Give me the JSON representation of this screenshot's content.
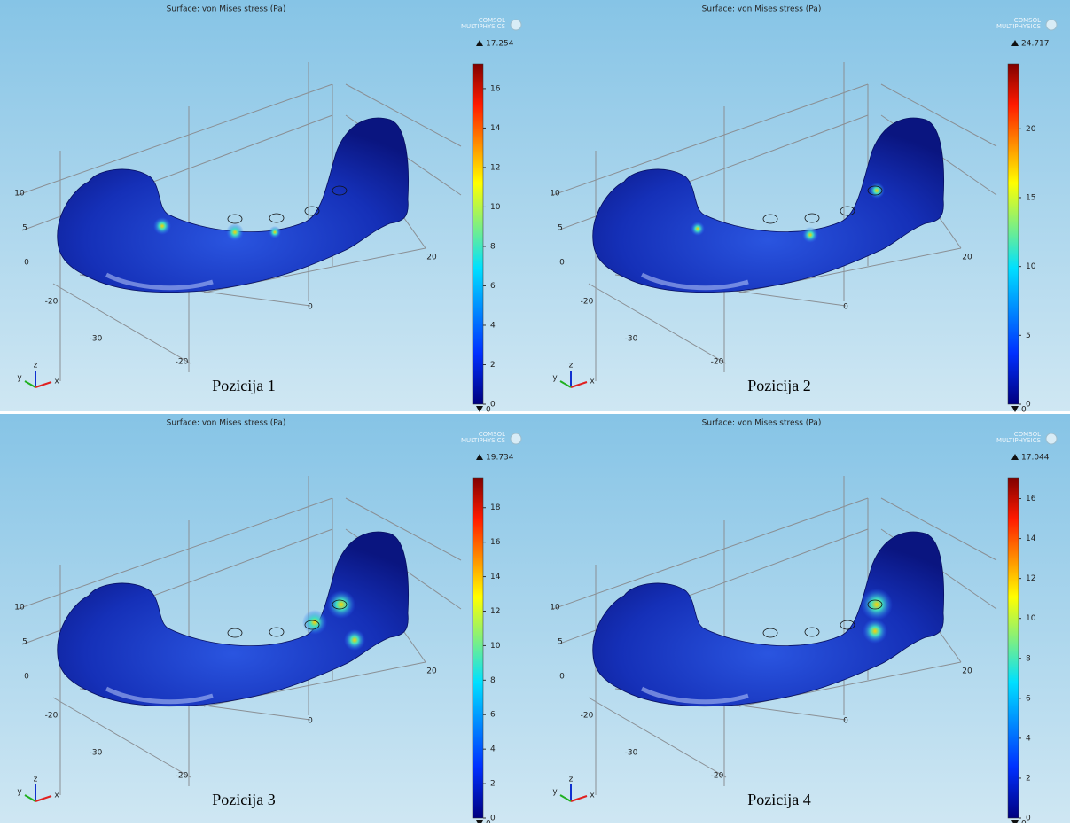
{
  "panels": [
    {
      "title": "Surface: von Mises stress (Pa)",
      "logo": [
        "COMSOL",
        "MULTIPHYSICS"
      ],
      "max": 17.254,
      "min": 0,
      "ticks": [
        0,
        2,
        4,
        6,
        8,
        10,
        12,
        14,
        16
      ],
      "axis_labels": [
        "10",
        "5",
        "0",
        "-20",
        "-30",
        "-20",
        "0",
        "20"
      ],
      "triad": [
        "y",
        "z",
        "x"
      ],
      "caption": "Pozicija 1"
    },
    {
      "title": "Surface: von Mises stress (Pa)",
      "logo": [
        "COMSOL",
        "MULTIPHYSICS"
      ],
      "max": 24.717,
      "min": 0,
      "ticks": [
        0,
        5,
        10,
        15,
        20
      ],
      "axis_labels": [
        "10",
        "5",
        "0",
        "-20",
        "-30",
        "-20",
        "0",
        "20"
      ],
      "triad": [
        "y",
        "z",
        "x"
      ],
      "caption": "Pozicija 2"
    },
    {
      "title": "Surface: von Mises stress (Pa)",
      "logo": [
        "COMSOL",
        "MULTIPHYSICS"
      ],
      "max": 19.734,
      "min": 0,
      "ticks": [
        0,
        2,
        4,
        6,
        8,
        10,
        12,
        14,
        16,
        18
      ],
      "axis_labels": [
        "10",
        "5",
        "0",
        "-20",
        "-30",
        "-20",
        "0",
        "20"
      ],
      "triad": [
        "y",
        "z",
        "x"
      ],
      "caption": "Pozicija 3"
    },
    {
      "title": "Surface: von Mises stress (Pa)",
      "logo": [
        "COMSOL",
        "MULTIPHYSICS"
      ],
      "max": 17.044,
      "min": 0,
      "ticks": [
        0,
        2,
        4,
        6,
        8,
        10,
        12,
        14,
        16
      ],
      "axis_labels": [
        "10",
        "5",
        "0",
        "-20",
        "-30",
        "-20",
        "0",
        "20"
      ],
      "triad": [
        "y",
        "z",
        "x"
      ],
      "caption": "Pozicija 4"
    }
  ]
}
